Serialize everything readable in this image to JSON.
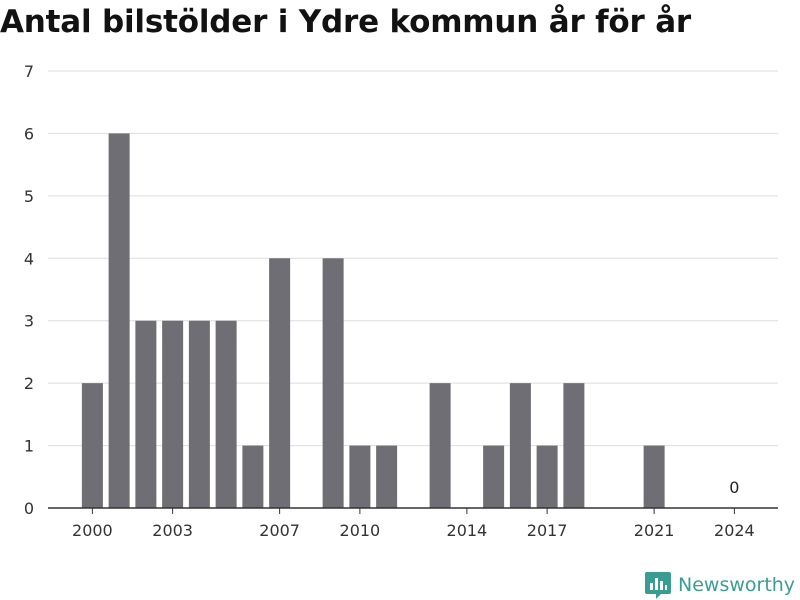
{
  "chart_data": {
    "type": "bar",
    "title": "Antal bilstölder i Ydre kommun år för år",
    "xlabel": "",
    "ylabel": "",
    "categories": [
      "2000",
      "2001",
      "2002",
      "2003",
      "2004",
      "2005",
      "2006",
      "2007",
      "2008",
      "2009",
      "2010",
      "2011",
      "2012",
      "2013",
      "2014",
      "2015",
      "2016",
      "2017",
      "2018",
      "2019",
      "2020",
      "2021",
      "2022",
      "2023",
      "2024"
    ],
    "values": [
      2,
      6,
      3,
      3,
      3,
      3,
      1,
      4,
      0,
      4,
      1,
      1,
      0,
      2,
      0,
      1,
      2,
      1,
      2,
      0,
      0,
      1,
      0,
      0,
      0
    ],
    "ylim": [
      0,
      7
    ],
    "yticks": [
      "0",
      "1",
      "2",
      "3",
      "4",
      "5",
      "6",
      "7"
    ],
    "xtick_labels": [
      "2000",
      "2003",
      "2007",
      "2010",
      "2014",
      "2017",
      "2021",
      "2024"
    ],
    "data_labels": [
      {
        "category": "2024",
        "text": "0"
      }
    ],
    "grid": true,
    "bar_color": "#6f6e74"
  },
  "brand": {
    "name": "Newsworthy",
    "icon": "newsworthy-logo-icon",
    "color": "#3a9d93"
  }
}
